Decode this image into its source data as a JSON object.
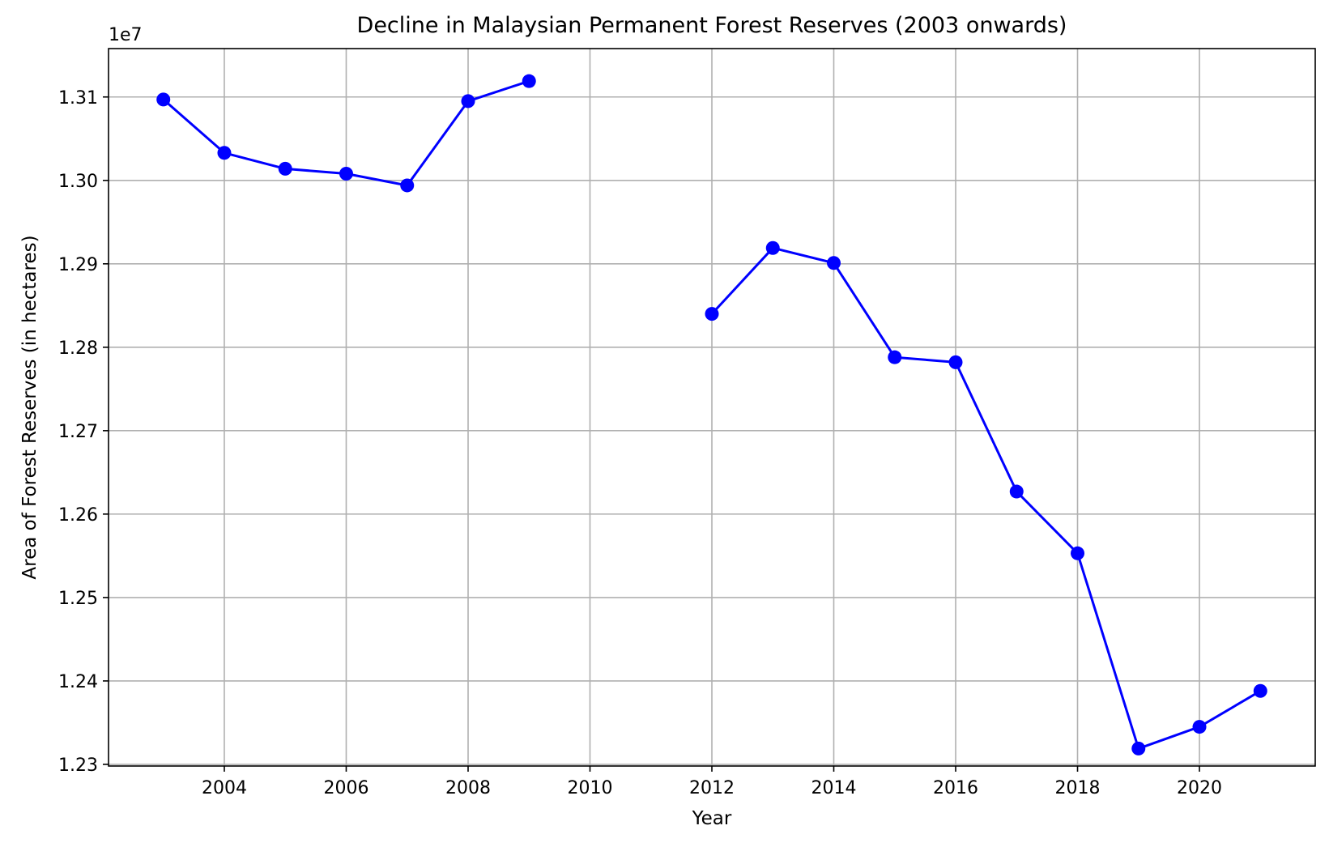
{
  "chart_data": {
    "type": "line",
    "title": "Decline in Malaysian Permanent Forest Reserves (2003 onwards)",
    "xlabel": "Year",
    "ylabel": "Area of Forest Reserves (in hectares)",
    "offset_text": "1e7",
    "xlim": [
      2002.1,
      2021.9
    ],
    "ylim": [
      12298000,
      13158000
    ],
    "x_ticks": [
      2004,
      2006,
      2008,
      2010,
      2012,
      2014,
      2016,
      2018,
      2020
    ],
    "y_ticks": [
      12300000,
      12400000,
      12500000,
      12600000,
      12700000,
      12800000,
      12900000,
      13000000,
      13100000
    ],
    "y_tick_labels": [
      "1.23",
      "1.24",
      "1.25",
      "1.26",
      "1.27",
      "1.28",
      "1.29",
      "1.30",
      "1.31"
    ],
    "grid": true,
    "line_color": "#0000ff",
    "marker": "circle",
    "series": [
      {
        "x": [
          2003,
          2004,
          2005,
          2006,
          2007,
          2008,
          2009,
          2010,
          2011,
          2012,
          2013,
          2014,
          2015,
          2016,
          2017,
          2018,
          2019,
          2020,
          2021
        ],
        "y": [
          13097000,
          13033000,
          13014000,
          13008000,
          12994000,
          13095000,
          13119000,
          null,
          null,
          12840000,
          12919000,
          12901000,
          12788000,
          12782000,
          12627000,
          12553000,
          12319000,
          12345000,
          12388000
        ]
      }
    ]
  }
}
